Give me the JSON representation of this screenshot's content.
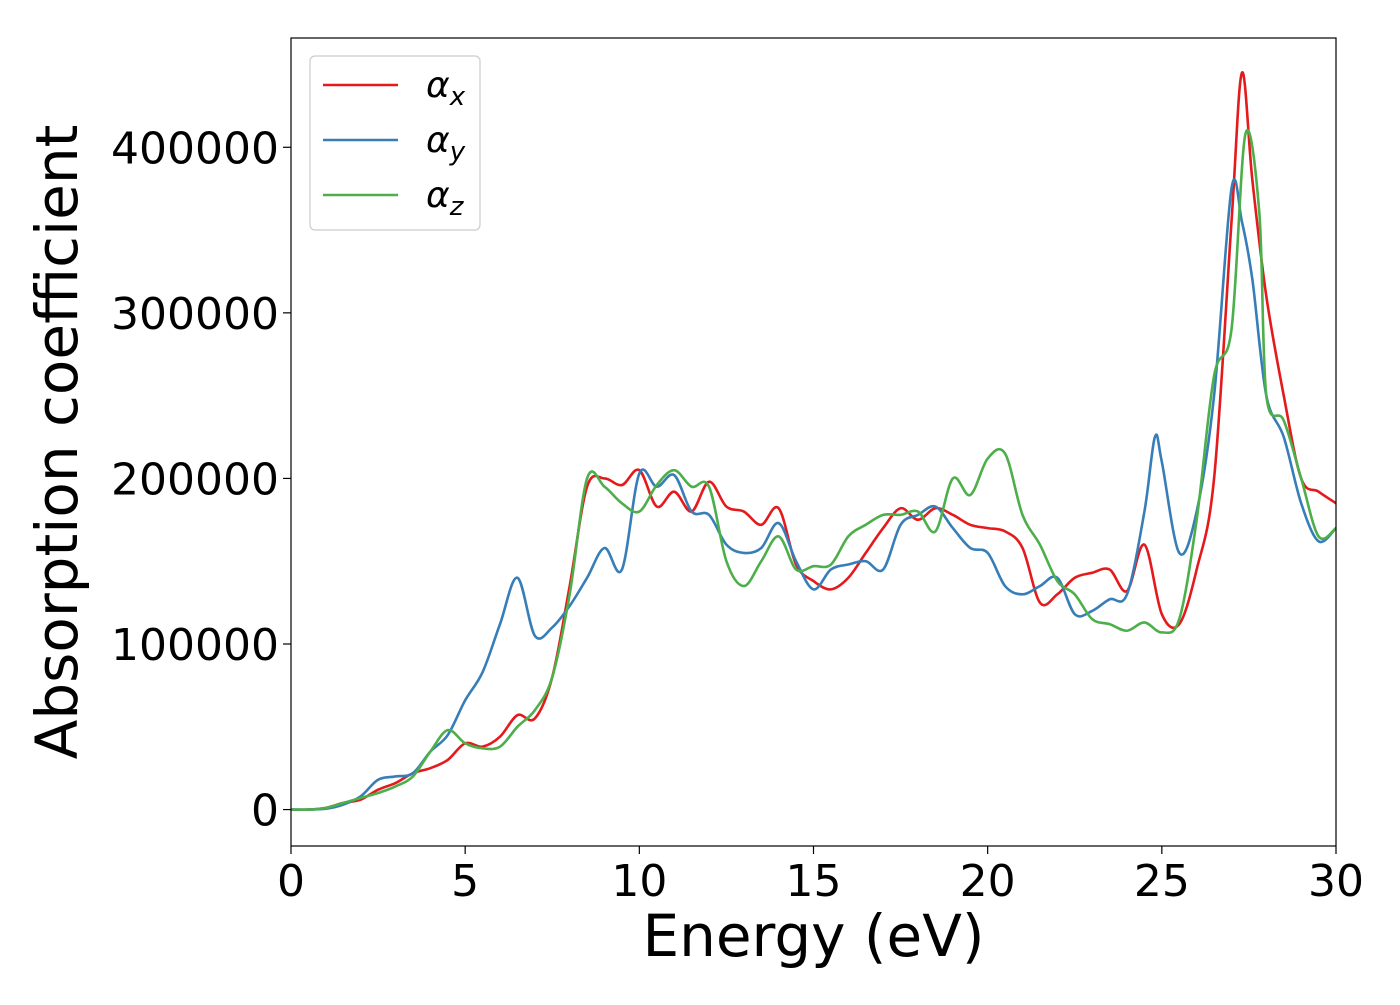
{
  "chart_data": {
    "type": "line",
    "xlabel": "Energy (eV)",
    "ylabel": "Absorption coefficient",
    "xlim": [
      0,
      30
    ],
    "ylim": [
      -22000,
      466000
    ],
    "x_ticks": [
      0,
      5,
      10,
      15,
      20,
      25,
      30
    ],
    "x_tick_labels": [
      "0",
      "5",
      "10",
      "15",
      "20",
      "25",
      "30"
    ],
    "y_ticks": [
      0,
      100000,
      200000,
      300000,
      400000
    ],
    "y_tick_labels": [
      "0",
      "100000",
      "200000",
      "300000",
      "400000"
    ],
    "grid": false,
    "legend_position": "upper-left",
    "series": [
      {
        "name": "αx",
        "legend": {
          "base": "α",
          "sub": "x"
        },
        "color": "#e41a1c",
        "x": [
          0,
          0.5,
          1.0,
          1.5,
          2.0,
          2.5,
          3.0,
          3.5,
          4.0,
          4.5,
          5.0,
          5.5,
          6.0,
          6.5,
          7.0,
          7.5,
          8.0,
          8.5,
          9.0,
          9.5,
          10.0,
          10.5,
          11.0,
          11.5,
          12.0,
          12.5,
          13.0,
          13.5,
          14.0,
          14.5,
          15.0,
          15.5,
          16.0,
          16.5,
          17.0,
          17.5,
          18.0,
          18.5,
          19.0,
          19.5,
          20.0,
          20.5,
          21.0,
          21.5,
          22.0,
          22.5,
          23.0,
          23.5,
          24.0,
          24.5,
          25.0,
          25.5,
          26.0,
          26.5,
          27.0,
          27.3,
          27.6,
          28.0,
          28.5,
          29.0,
          29.5,
          30.0
        ],
        "y": [
          0,
          0,
          1000,
          4000,
          6000,
          12000,
          16000,
          22000,
          25000,
          30000,
          40000,
          38000,
          44000,
          57000,
          55000,
          80000,
          135000,
          195000,
          200000,
          196000,
          205000,
          183000,
          192000,
          180000,
          198000,
          183000,
          180000,
          172000,
          182000,
          148000,
          138000,
          133000,
          140000,
          155000,
          170000,
          182000,
          175000,
          182000,
          178000,
          172000,
          170000,
          168000,
          158000,
          125000,
          130000,
          140000,
          143000,
          145000,
          132000,
          160000,
          118000,
          112000,
          145000,
          200000,
          355000,
          445000,
          380000,
          310000,
          250000,
          200000,
          192000,
          185000
        ]
      },
      {
        "name": "αy",
        "legend": {
          "base": "α",
          "sub": "y"
        },
        "color": "#377eb8",
        "x": [
          0,
          0.5,
          1.0,
          1.5,
          2.0,
          2.5,
          3.0,
          3.5,
          4.0,
          4.5,
          5.0,
          5.5,
          6.0,
          6.5,
          7.0,
          7.5,
          8.0,
          8.5,
          9.0,
          9.5,
          10.0,
          10.5,
          11.0,
          11.5,
          12.0,
          12.5,
          13.0,
          13.5,
          14.0,
          14.5,
          15.0,
          15.5,
          16.0,
          16.5,
          17.0,
          17.5,
          18.0,
          18.5,
          19.0,
          19.5,
          20.0,
          20.5,
          21.0,
          21.5,
          22.0,
          22.5,
          23.0,
          23.5,
          24.0,
          24.5,
          24.8,
          25.0,
          25.5,
          26.0,
          26.5,
          27.0,
          27.3,
          27.6,
          28.0,
          28.5,
          29.0,
          29.5,
          30.0
        ],
        "y": [
          0,
          0,
          500,
          3000,
          8000,
          18000,
          20000,
          22000,
          35000,
          45000,
          66000,
          83000,
          112000,
          140000,
          105000,
          110000,
          123000,
          140000,
          158000,
          145000,
          203000,
          195000,
          202000,
          180000,
          178000,
          160000,
          155000,
          158000,
          173000,
          150000,
          133000,
          145000,
          148000,
          150000,
          145000,
          172000,
          178000,
          183000,
          170000,
          158000,
          155000,
          135000,
          130000,
          135000,
          140000,
          118000,
          120000,
          127000,
          130000,
          180000,
          225000,
          210000,
          155000,
          180000,
          250000,
          375000,
          355000,
          320000,
          250000,
          225000,
          185000,
          162000,
          170000
        ]
      },
      {
        "name": "αz",
        "legend": {
          "base": "α",
          "sub": "z"
        },
        "color": "#4daf4a",
        "x": [
          0,
          0.5,
          1.0,
          1.5,
          2.0,
          2.5,
          3.0,
          3.5,
          4.0,
          4.5,
          5.0,
          5.5,
          6.0,
          6.5,
          7.0,
          7.5,
          8.0,
          8.5,
          9.0,
          9.5,
          10.0,
          10.5,
          11.0,
          11.5,
          12.0,
          12.5,
          13.0,
          13.5,
          14.0,
          14.5,
          15.0,
          15.5,
          16.0,
          16.5,
          17.0,
          17.5,
          18.0,
          18.5,
          19.0,
          19.5,
          20.0,
          20.5,
          21.0,
          21.5,
          22.0,
          22.5,
          23.0,
          23.5,
          24.0,
          24.5,
          25.0,
          25.5,
          26.0,
          26.5,
          27.0,
          27.4,
          27.8,
          28.0,
          28.5,
          29.0,
          29.5,
          30.0
        ],
        "y": [
          0,
          0,
          1000,
          4000,
          7000,
          10000,
          14000,
          20000,
          35000,
          48000,
          40000,
          37000,
          38000,
          50000,
          60000,
          80000,
          130000,
          200000,
          195000,
          185000,
          180000,
          196000,
          205000,
          195000,
          195000,
          150000,
          135000,
          150000,
          165000,
          145000,
          147000,
          148000,
          165000,
          172000,
          178000,
          178000,
          180000,
          168000,
          200000,
          190000,
          212000,
          215000,
          178000,
          160000,
          138000,
          130000,
          115000,
          112000,
          108000,
          113000,
          107000,
          115000,
          175000,
          262000,
          290000,
          408000,
          360000,
          250000,
          235000,
          200000,
          165000,
          170000
        ]
      }
    ]
  }
}
